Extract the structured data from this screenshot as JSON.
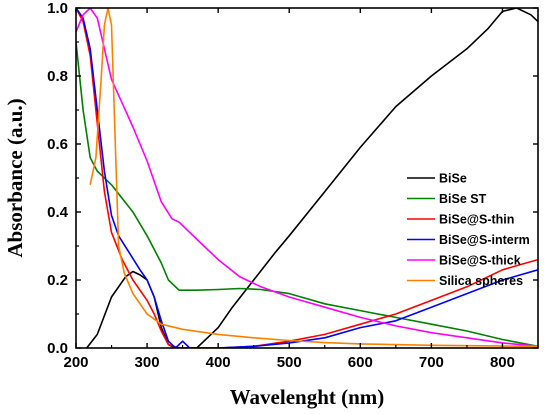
{
  "chart_data": {
    "type": "line",
    "title": "",
    "xlabel": "Wavelenght (nm)",
    "ylabel": "Absorbance (a.u.)",
    "xlim": [
      200,
      850
    ],
    "ylim": [
      0,
      1.0
    ],
    "x_ticks": [
      200,
      300,
      400,
      500,
      600,
      700,
      800
    ],
    "y_ticks": [
      0.0,
      0.2,
      0.4,
      0.6,
      0.8,
      1.0
    ],
    "x_tick_labels": [
      "200",
      "300",
      "400",
      "500",
      "600",
      "700",
      "800"
    ],
    "y_tick_labels": [
      "0.0",
      "0.2",
      "0.4",
      "0.6",
      "0.8",
      "1.0"
    ],
    "legend_position": "right-middle",
    "grid": false,
    "series": [
      {
        "name": "BiSe",
        "color": "#000000",
        "points": [
          [
            215,
            0.0
          ],
          [
            230,
            0.04
          ],
          [
            250,
            0.15
          ],
          [
            270,
            0.21
          ],
          [
            280,
            0.225
          ],
          [
            290,
            0.215
          ],
          [
            300,
            0.2
          ],
          [
            310,
            0.15
          ],
          [
            320,
            0.06
          ],
          [
            330,
            0.01
          ],
          [
            340,
            0.0
          ],
          [
            370,
            0.0
          ],
          [
            400,
            0.06
          ],
          [
            420,
            0.12
          ],
          [
            450,
            0.2
          ],
          [
            480,
            0.28
          ],
          [
            500,
            0.33
          ],
          [
            550,
            0.46
          ],
          [
            600,
            0.59
          ],
          [
            650,
            0.71
          ],
          [
            700,
            0.8
          ],
          [
            750,
            0.88
          ],
          [
            780,
            0.94
          ],
          [
            800,
            0.99
          ],
          [
            820,
            1.0
          ],
          [
            840,
            0.98
          ],
          [
            850,
            0.96
          ]
        ]
      },
      {
        "name": "BiSe ST",
        "color": "#008000",
        "points": [
          [
            200,
            0.9
          ],
          [
            210,
            0.7
          ],
          [
            220,
            0.56
          ],
          [
            230,
            0.52
          ],
          [
            250,
            0.48
          ],
          [
            280,
            0.4
          ],
          [
            300,
            0.33
          ],
          [
            320,
            0.25
          ],
          [
            330,
            0.2
          ],
          [
            345,
            0.17
          ],
          [
            370,
            0.17
          ],
          [
            400,
            0.172
          ],
          [
            430,
            0.175
          ],
          [
            460,
            0.172
          ],
          [
            500,
            0.16
          ],
          [
            550,
            0.13
          ],
          [
            600,
            0.11
          ],
          [
            650,
            0.09
          ],
          [
            700,
            0.07
          ],
          [
            750,
            0.05
          ],
          [
            800,
            0.025
          ],
          [
            850,
            0.005
          ]
        ]
      },
      {
        "name": "BiSe@S-thin",
        "color": "#ff0000",
        "points": [
          [
            200,
            1.0
          ],
          [
            210,
            0.96
          ],
          [
            220,
            0.86
          ],
          [
            230,
            0.66
          ],
          [
            240,
            0.46
          ],
          [
            250,
            0.34
          ],
          [
            265,
            0.26
          ],
          [
            280,
            0.2
          ],
          [
            300,
            0.14
          ],
          [
            310,
            0.1
          ],
          [
            320,
            0.05
          ],
          [
            330,
            0.01
          ],
          [
            345,
            0.0
          ],
          [
            360,
            0.0
          ],
          [
            400,
            0.0
          ],
          [
            450,
            0.005
          ],
          [
            500,
            0.02
          ],
          [
            550,
            0.04
          ],
          [
            600,
            0.07
          ],
          [
            650,
            0.1
          ],
          [
            700,
            0.14
          ],
          [
            750,
            0.18
          ],
          [
            800,
            0.23
          ],
          [
            850,
            0.26
          ]
        ]
      },
      {
        "name": "BiSe@S-interm",
        "color": "#0000ff",
        "points": [
          [
            200,
            1.0
          ],
          [
            210,
            0.97
          ],
          [
            220,
            0.88
          ],
          [
            230,
            0.7
          ],
          [
            240,
            0.52
          ],
          [
            250,
            0.39
          ],
          [
            260,
            0.33
          ],
          [
            275,
            0.28
          ],
          [
            290,
            0.23
          ],
          [
            300,
            0.2
          ],
          [
            310,
            0.15
          ],
          [
            320,
            0.08
          ],
          [
            330,
            0.02
          ],
          [
            340,
            0.0
          ],
          [
            350,
            0.02
          ],
          [
            360,
            0.0
          ],
          [
            400,
            0.0
          ],
          [
            450,
            0.005
          ],
          [
            500,
            0.015
          ],
          [
            550,
            0.03
          ],
          [
            600,
            0.06
          ],
          [
            650,
            0.08
          ],
          [
            700,
            0.12
          ],
          [
            750,
            0.16
          ],
          [
            800,
            0.2
          ],
          [
            850,
            0.23
          ]
        ]
      },
      {
        "name": "BiSe@S-thick",
        "color": "#ff00ff",
        "points": [
          [
            200,
            0.93
          ],
          [
            210,
            0.98
          ],
          [
            220,
            1.0
          ],
          [
            230,
            0.97
          ],
          [
            240,
            0.88
          ],
          [
            250,
            0.79
          ],
          [
            265,
            0.72
          ],
          [
            280,
            0.65
          ],
          [
            300,
            0.55
          ],
          [
            320,
            0.43
          ],
          [
            335,
            0.38
          ],
          [
            345,
            0.37
          ],
          [
            360,
            0.34
          ],
          [
            380,
            0.3
          ],
          [
            400,
            0.26
          ],
          [
            430,
            0.21
          ],
          [
            460,
            0.18
          ],
          [
            500,
            0.15
          ],
          [
            550,
            0.12
          ],
          [
            600,
            0.09
          ],
          [
            650,
            0.065
          ],
          [
            700,
            0.045
          ],
          [
            750,
            0.03
          ],
          [
            800,
            0.015
          ],
          [
            850,
            0.005
          ]
        ]
      },
      {
        "name": "Silica spheres",
        "color": "#ff8000",
        "points": [
          [
            220,
            0.48
          ],
          [
            228,
            0.56
          ],
          [
            235,
            0.78
          ],
          [
            240,
            0.95
          ],
          [
            245,
            1.0
          ],
          [
            250,
            0.95
          ],
          [
            255,
            0.62
          ],
          [
            260,
            0.3
          ],
          [
            268,
            0.22
          ],
          [
            280,
            0.16
          ],
          [
            300,
            0.1
          ],
          [
            320,
            0.07
          ],
          [
            350,
            0.055
          ],
          [
            400,
            0.04
          ],
          [
            450,
            0.03
          ],
          [
            500,
            0.022
          ],
          [
            550,
            0.016
          ],
          [
            600,
            0.012
          ],
          [
            700,
            0.008
          ],
          [
            850,
            0.005
          ]
        ]
      }
    ]
  }
}
